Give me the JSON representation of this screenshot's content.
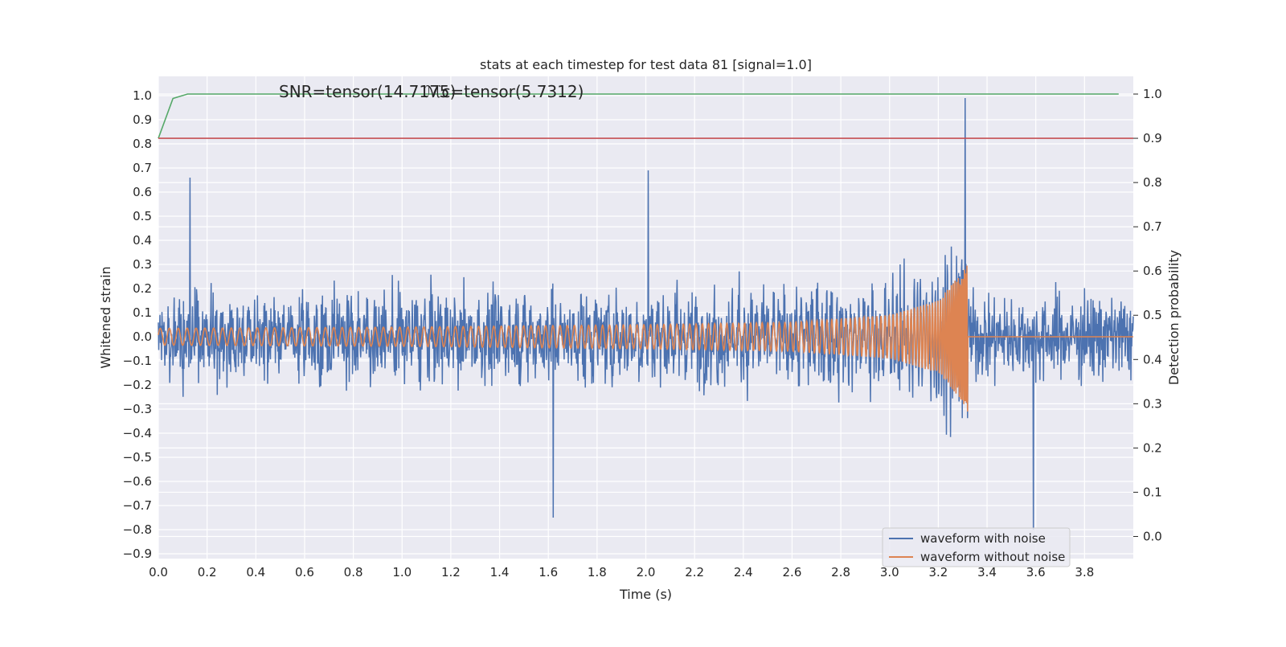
{
  "chart_data": {
    "type": "line",
    "title": "stats at each timestep for test data 81 [signal=1.0]",
    "xlabel": "Time (s)",
    "ylabel": "Whitened strain",
    "y2label": "Detection probability",
    "xlim": [
      0.0,
      4.0
    ],
    "ylim": [
      -0.92,
      1.08
    ],
    "y2lim": [
      -0.05,
      1.04
    ],
    "x_ticks": [
      0.0,
      0.2,
      0.4,
      0.6,
      0.8,
      1.0,
      1.2,
      1.4,
      1.6,
      1.8,
      2.0,
      2.2,
      2.4,
      2.6,
      2.8,
      3.0,
      3.2,
      3.4,
      3.6,
      3.8
    ],
    "x_tick_labels": [
      "0.0",
      "0.2",
      "0.4",
      "0.6",
      "0.8",
      "1.0",
      "1.2",
      "1.4",
      "1.6",
      "1.8",
      "2.0",
      "2.2",
      "2.4",
      "2.6",
      "2.8",
      "3.0",
      "3.2",
      "3.4",
      "3.6",
      "3.8"
    ],
    "y_ticks": [
      1.0,
      0.9,
      0.8,
      0.7,
      0.6,
      0.5,
      0.4,
      0.3,
      0.2,
      0.1,
      0.0,
      -0.1,
      -0.2,
      -0.3,
      -0.4,
      -0.5,
      -0.6,
      -0.7,
      -0.8,
      -0.9
    ],
    "y_tick_labels": [
      "1.0",
      "0.9",
      "0.8",
      "0.7",
      "0.6",
      "0.5",
      "0.4",
      "0.3",
      "0.2",
      "0.1",
      "0.0",
      "−0.1",
      "−0.2",
      "−0.3",
      "−0.4",
      "−0.5",
      "−0.6",
      "−0.7",
      "−0.8",
      "−0.9"
    ],
    "y2_ticks": [
      1.0,
      0.9,
      0.8,
      0.7,
      0.6,
      0.5,
      0.4,
      0.3,
      0.2,
      0.1,
      0.0
    ],
    "y2_tick_labels": [
      "1.0",
      "0.9",
      "0.8",
      "0.7",
      "0.6",
      "0.5",
      "0.4",
      "0.3",
      "0.2",
      "0.1",
      "0.0"
    ],
    "grid": true,
    "legend_position": "lower-right",
    "annotations": [
      "SNR=tensor(14.7175)",
      "ℳc=tensor(5.7312)"
    ],
    "series": [
      {
        "name": "waveform with noise",
        "axis": "left",
        "color": "#4c72b0",
        "noise_envelope": {
          "t": [
            0.0,
            1.0,
            2.0,
            3.0,
            3.2,
            3.3,
            3.35,
            3.6,
            4.0
          ],
          "amp": [
            0.28,
            0.28,
            0.29,
            0.3,
            0.32,
            0.34,
            0.28,
            0.28,
            0.28
          ]
        },
        "peaks": [
          {
            "x": 3.31,
            "y": 0.99
          },
          {
            "x": 3.59,
            "y": -0.8
          },
          {
            "x": 1.62,
            "y": -0.75
          },
          {
            "x": 2.01,
            "y": 0.69
          },
          {
            "x": 0.13,
            "y": 0.66
          }
        ]
      },
      {
        "name": "waveform without noise",
        "axis": "left",
        "color": "#dd8452",
        "chirp": {
          "t_merger": 3.32,
          "amp_envelope": {
            "t": [
              0.0,
              1.0,
              2.0,
              2.6,
              3.0,
              3.2,
              3.3,
              3.32
            ],
            "amp": [
              0.035,
              0.04,
              0.05,
              0.06,
              0.09,
              0.15,
              0.27,
              0.31
            ]
          },
          "freq_envelope": {
            "t": [
              0.0,
              1.0,
              2.0,
              2.6,
              3.0,
              3.2,
              3.3,
              3.32
            ],
            "hz": [
              27,
              30,
              36,
              44,
              60,
              90,
              160,
              220
            ]
          },
          "after_merger": 0.0
        }
      },
      {
        "axis": "right",
        "color": "#55a868",
        "x": [
          0.0,
          0.06,
          0.12,
          0.18,
          3.94
        ],
        "y": [
          0.9,
          0.99,
          1.0,
          1.0,
          1.0
        ]
      },
      {
        "axis": "right",
        "color": "#c44e52",
        "x": [
          0.0,
          4.0
        ],
        "y": [
          0.9,
          0.9
        ]
      }
    ]
  },
  "legend": {
    "items": [
      {
        "label": "waveform with noise",
        "color": "#4c72b0"
      },
      {
        "label": "waveform without noise",
        "color": "#dd8452"
      }
    ]
  },
  "colors": {
    "plot_background": "#eaeaf2",
    "grid": "#ffffff"
  }
}
